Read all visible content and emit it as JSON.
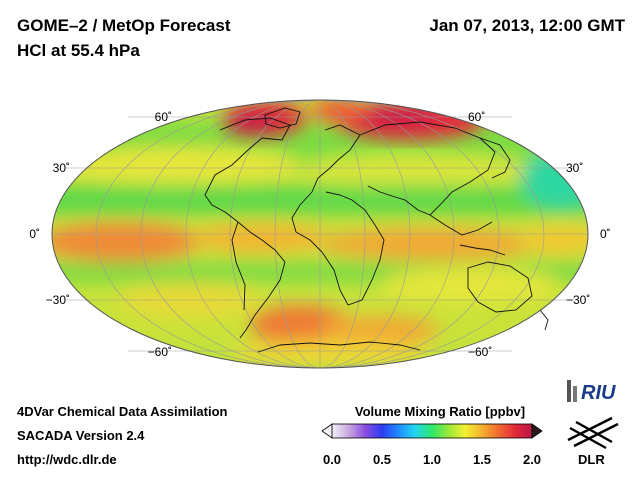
{
  "header": {
    "title_line1": "GOME–2 / MetOp Forecast",
    "title_line2": "HCl at 55.4 hPa",
    "datetime": "Jan 07, 2013, 12:00 GMT"
  },
  "map": {
    "projection": "Mollweide",
    "latitude_labels_left": [
      "60˚",
      "30˚",
      "0˚",
      "−30˚",
      "−60˚"
    ],
    "latitude_labels_right": [
      "60˚",
      "30˚",
      "0˚",
      "−30˚",
      "−60˚"
    ],
    "graticule": "30 degree grid",
    "coastlines": "on"
  },
  "footer": {
    "line1": "4DVar Chemical Data Assimilation",
    "line2": "SACADA Version 2.4",
    "line3": "http://wdc.dlr.de"
  },
  "colorbar": {
    "title": "Volume Mixing Ratio [ppbv]",
    "ticks": [
      "0.0",
      "0.5",
      "1.0",
      "1.5",
      "2.0"
    ],
    "min": 0.0,
    "max": 2.0,
    "colors": [
      "#f4f0f8",
      "#c9a8e0",
      "#8a4de0",
      "#2d3cf0",
      "#1e8cff",
      "#22d6ee",
      "#2ee86a",
      "#9be838",
      "#f2f030",
      "#f4b030",
      "#ef6a30",
      "#e22a38",
      "#b8184a"
    ]
  },
  "logos": {
    "riu": "RIU",
    "dlr": "DLR"
  }
}
